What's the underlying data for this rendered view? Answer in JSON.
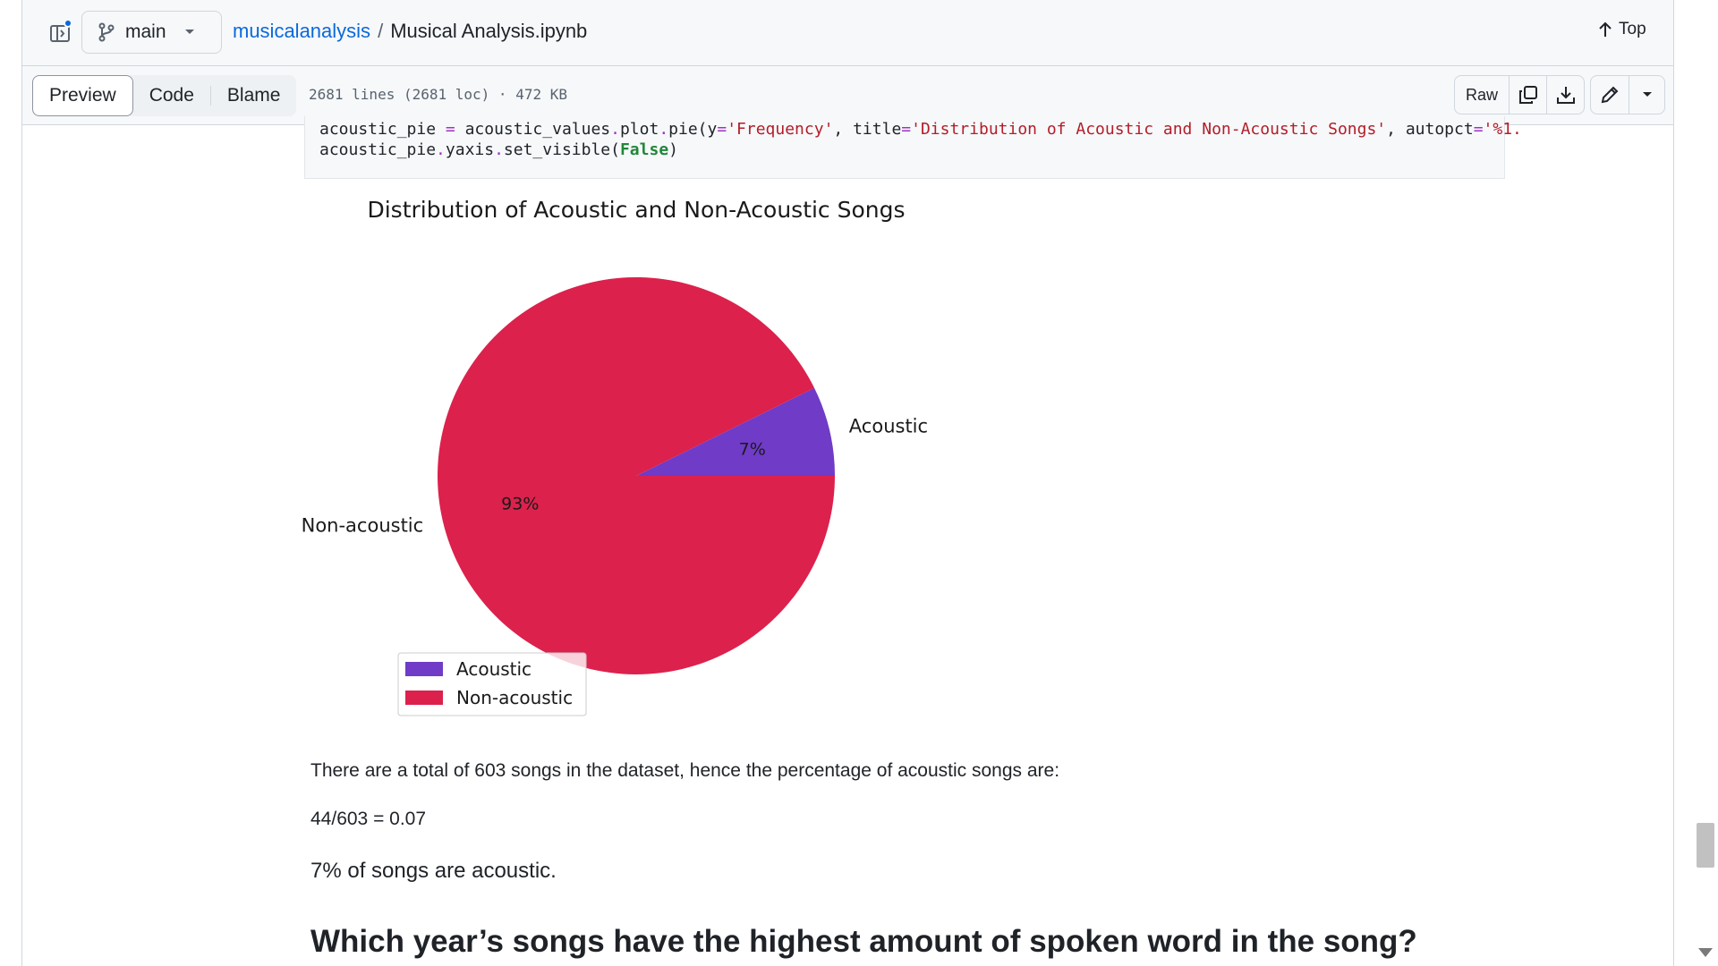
{
  "header": {
    "branch": "main",
    "repo": "musicalanalysis",
    "separator": "/",
    "file": "Musical Analysis.ipynb",
    "top_label": "Top"
  },
  "toolbar": {
    "tabs": [
      {
        "label": "Preview",
        "active": true
      },
      {
        "label": "Code",
        "active": false
      },
      {
        "label": "Blame",
        "active": false
      }
    ],
    "file_info": "2681 lines (2681 loc) · 472 KB",
    "raw_label": "Raw"
  },
  "code": {
    "line1_a": "acoustic_pie ",
    "line1_b": "=",
    "line1_c": " acoustic_values",
    "line1_d": ".",
    "line1_e": "plot",
    "line1_f": ".",
    "line1_g": "pie(y",
    "line1_h": "=",
    "line1_i": "'Frequency'",
    "line1_j": ", title",
    "line1_k": "=",
    "line1_l": "'Distribution of Acoustic and Non-Acoustic Songs'",
    "line1_m": ", autopct",
    "line1_n": "=",
    "line1_o": "'%1.",
    "line2_a": "acoustic_pie",
    "line2_b": ".",
    "line2_c": "yaxis",
    "line2_d": ".",
    "line2_e": "set_visible(",
    "line2_f": "False",
    "line2_g": ")"
  },
  "chart_data": {
    "type": "pie",
    "title": "Distribution of Acoustic and Non-Acoustic Songs",
    "categories": [
      "Acoustic",
      "Non-acoustic"
    ],
    "values": [
      44,
      559
    ],
    "percent_labels": [
      "7%",
      "93%"
    ],
    "colors": [
      "#6f3bc7",
      "#dc214c"
    ],
    "legend_position": "lower-left"
  },
  "text": {
    "para1": "There are a total of 603 songs in the dataset, hence the percentage of acoustic songs are:",
    "para2": "44/603 = 0.07",
    "h4": "7% of songs are acoustic.",
    "h3": "Which year’s songs have the highest amount of spoken word in the song?"
  }
}
